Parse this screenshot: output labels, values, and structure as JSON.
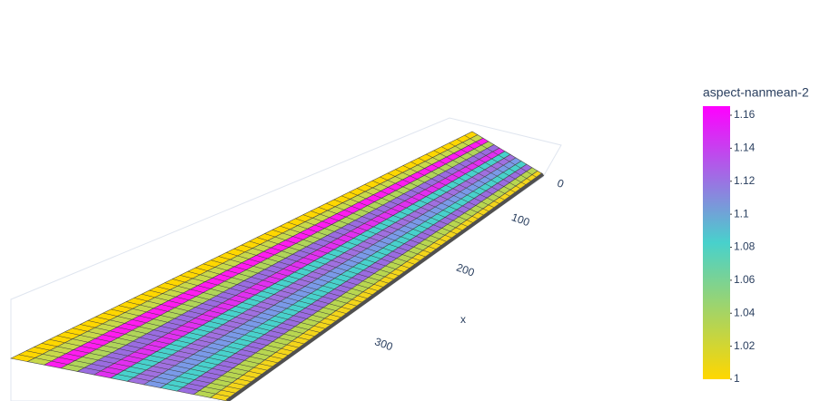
{
  "chart_data": {
    "type": "surface",
    "xaxis_title": "x",
    "xticks": [
      0,
      100,
      200,
      300
    ],
    "colorbar_title": "aspect-nanmean-2",
    "clim": [
      1,
      1.1655
    ],
    "cticks": [
      1,
      1.02,
      1.04,
      1.06,
      1.08,
      1.1,
      1.12,
      1.14,
      1.16
    ],
    "colorscale": [
      "#ffd700",
      "#48d1cc",
      "#ff00ff"
    ]
  }
}
